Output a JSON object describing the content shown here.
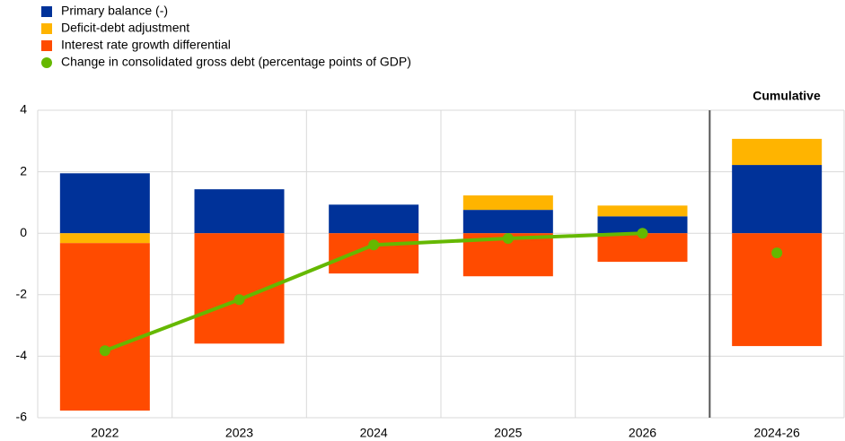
{
  "chart_data": {
    "type": "stacked-bar-line",
    "categories": [
      "2022",
      "2023",
      "2024",
      "2025",
      "2026",
      "2024-26"
    ],
    "series": [
      {
        "name": "Primary balance (-)",
        "color": "#003299",
        "kind": "bar",
        "values": [
          1.95,
          1.43,
          0.93,
          0.76,
          0.55,
          2.22
        ]
      },
      {
        "name": "Deficit-debt adjustment",
        "color": "#ffb400",
        "kind": "bar",
        "values": [
          -0.32,
          0,
          0,
          0.47,
          0.35,
          0.85
        ]
      },
      {
        "name": "Interest rate growth differential",
        "color": "#ff4b00",
        "kind": "bar",
        "values": [
          -5.45,
          -3.59,
          -1.31,
          -1.4,
          -0.93,
          -3.67
        ]
      },
      {
        "name": "Change in consolidated gross debt (percentage points of GDP)",
        "color": "#65b800",
        "kind": "line",
        "values": [
          -3.82,
          -2.16,
          -0.38,
          -0.17,
          0.0,
          -0.64
        ]
      }
    ],
    "annotation": "Cumulative",
    "cumulative_start": 5,
    "ylim": [
      -6,
      4
    ],
    "yticks": [
      -6,
      -4,
      -2,
      0,
      2,
      4
    ],
    "grid": true
  }
}
